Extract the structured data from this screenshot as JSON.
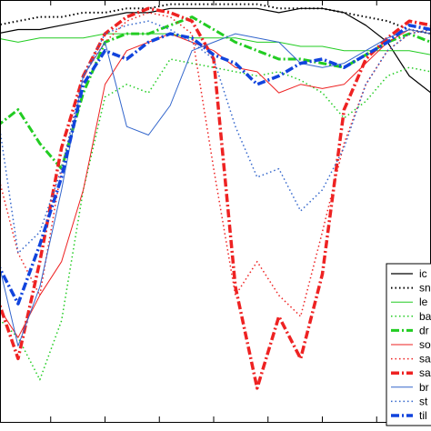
{
  "chart_data": {
    "type": "line",
    "title": "",
    "xlabel": "",
    "ylabel": "",
    "grid": false,
    "legend_placement": "bottom-right",
    "xlim": [
      0,
      100
    ],
    "ylim": [
      0,
      100
    ],
    "x": [
      0,
      5,
      10,
      15,
      20,
      25,
      30,
      35,
      40,
      45,
      50,
      55,
      60,
      65,
      70,
      75,
      80,
      85,
      90,
      95,
      100
    ],
    "series": [
      {
        "name": "ic",
        "color": "#000000",
        "style": "solid",
        "width": 1.2,
        "values": [
          92,
          93,
          93,
          94,
          95,
          96,
          97,
          97,
          98,
          98,
          98,
          98,
          98,
          97,
          98,
          98,
          97,
          94,
          90,
          82,
          78
        ]
      },
      {
        "name": "sn",
        "color": "#000000",
        "style": "dotted",
        "width": 2,
        "values": [
          94,
          95,
          96,
          96,
          97,
          97,
          98,
          98,
          99,
          99,
          99,
          99,
          99,
          98,
          98,
          98,
          97,
          96,
          95,
          93,
          92
        ]
      },
      {
        "name": "le",
        "color": "#22cc22",
        "style": "solid",
        "width": 1,
        "values": [
          91,
          90,
          91,
          91,
          91,
          92,
          92,
          92,
          92,
          91,
          91,
          91,
          90,
          90,
          89,
          89,
          88,
          88,
          88,
          88,
          87
        ]
      },
      {
        "name": "ba",
        "color": "#22cc22",
        "style": "dotted",
        "width": 1.5,
        "values": [
          25,
          20,
          10,
          24,
          55,
          77,
          80,
          78,
          86,
          85,
          84,
          83,
          82,
          83,
          81,
          78,
          72,
          76,
          82,
          84,
          83
        ]
      },
      {
        "name": "dr",
        "color": "#22cc22",
        "style": "dashdot",
        "width": 3,
        "values": [
          70,
          74,
          66,
          60,
          78,
          90,
          92,
          92,
          94,
          96,
          93,
          90,
          88,
          86,
          86,
          85,
          84,
          87,
          90,
          92,
          90
        ]
      },
      {
        "name": "so",
        "color": "#ee2222",
        "style": "solid",
        "width": 1,
        "values": [
          28,
          20,
          30,
          38,
          55,
          80,
          88,
          90,
          92,
          90,
          88,
          84,
          83,
          78,
          80,
          79,
          80,
          85,
          90,
          93,
          92
        ]
      },
      {
        "name": "sa",
        "color": "#ee2222",
        "style": "dotted",
        "width": 1.5,
        "values": [
          60,
          40,
          30,
          60,
          82,
          90,
          95,
          97,
          96,
          92,
          60,
          30,
          38,
          30,
          25,
          45,
          66,
          80,
          88,
          92,
          93
        ]
      },
      {
        "name": "sa",
        "color": "#ee2222",
        "style": "dashdot",
        "width": 3.5,
        "values": [
          30,
          15,
          38,
          65,
          82,
          92,
          96,
          98,
          97,
          95,
          86,
          32,
          8,
          25,
          15,
          35,
          74,
          86,
          91,
          95,
          94
        ]
      },
      {
        "name": "br",
        "color": "#3366cc",
        "style": "solid",
        "width": 1,
        "values": [
          40,
          18,
          32,
          55,
          82,
          90,
          70,
          68,
          75,
          88,
          90,
          92,
          91,
          90,
          85,
          84,
          85,
          88,
          91,
          93,
          92
        ]
      },
      {
        "name": "st",
        "color": "#3366cc",
        "style": "dotted",
        "width": 1.5,
        "values": [
          75,
          40,
          45,
          60,
          82,
          92,
          94,
          95,
          93,
          90,
          86,
          70,
          58,
          60,
          50,
          55,
          65,
          80,
          88,
          92,
          93
        ]
      },
      {
        "name": "til",
        "color": "#1144dd",
        "style": "dashdot",
        "width": 3.5,
        "values": [
          38,
          28,
          42,
          58,
          80,
          88,
          86,
          90,
          92,
          91,
          87,
          85,
          80,
          82,
          85,
          86,
          84,
          87,
          90,
          94,
          93
        ]
      }
    ],
    "legend_entries": [
      "ic",
      "sn",
      "le",
      "ba",
      "dr",
      "so",
      "sa",
      "sa",
      "br",
      "st",
      "til"
    ]
  }
}
